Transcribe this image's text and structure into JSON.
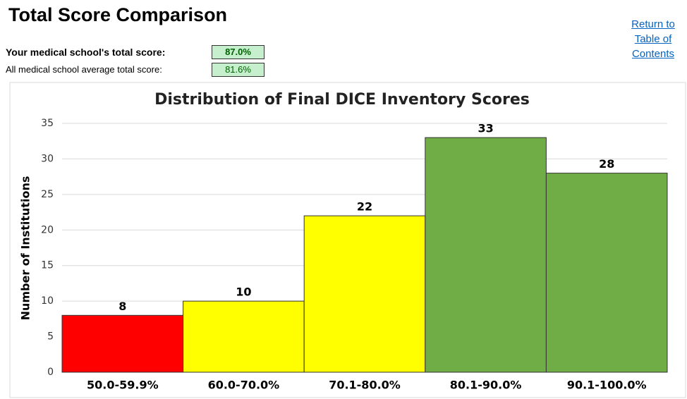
{
  "header": {
    "title": "Total Score Comparison",
    "rows": [
      {
        "label": "Your medical school's total score:",
        "value": "87.0%"
      },
      {
        "label": "All medical school average total score:",
        "value": "81.6%"
      }
    ],
    "link": "Return to Table of Contents"
  },
  "chart_data": {
    "type": "bar",
    "title": "Distribution of Final DICE Inventory Scores",
    "y_label": "Number of Institutions",
    "categories": [
      "50.0-59.9%",
      "60.0-70.0%",
      "70.1-80.0%",
      "80.1-90.0%",
      "90.1-100.0%"
    ],
    "values": [
      8,
      10,
      22,
      33,
      28
    ],
    "colors": [
      "#ff0000",
      "#ffff00",
      "#ffff00",
      "#70ad47",
      "#70ad47"
    ],
    "ylim": [
      0,
      35
    ],
    "yticks": [
      0,
      5,
      10,
      15,
      20,
      25,
      30,
      35
    ],
    "grid": true
  }
}
